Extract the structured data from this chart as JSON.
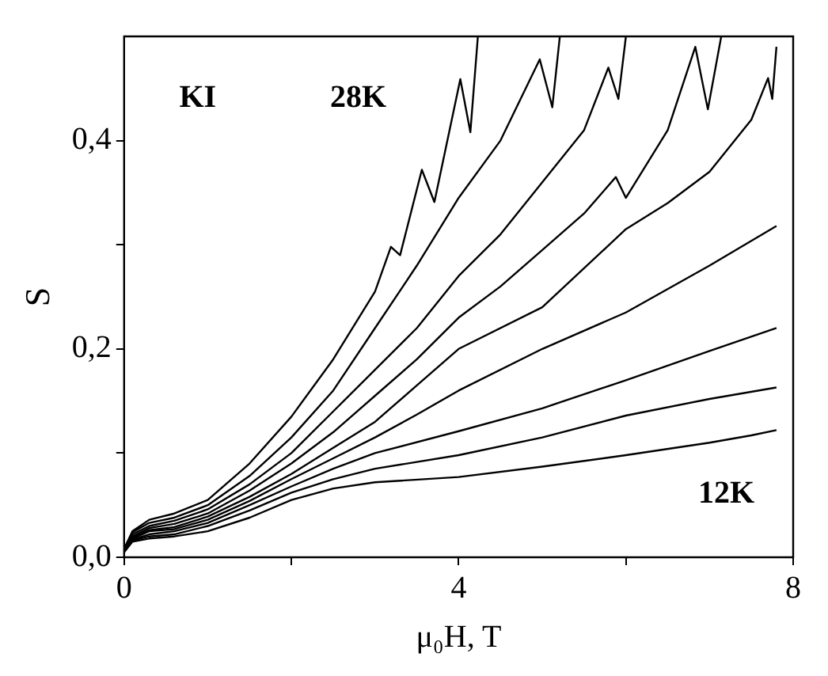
{
  "chart_data": {
    "type": "line",
    "xlabel": "μ₀H, T",
    "ylabel": "S",
    "xlim": [
      0,
      8
    ],
    "ylim": [
      0,
      0.5
    ],
    "xticks": [
      0,
      {
        "value": 2,
        "label": null
      },
      4,
      {
        "value": 6,
        "label": null
      },
      8
    ],
    "yticks": [
      {
        "value": 0,
        "label": "0,0"
      },
      {
        "value": 0.1,
        "label": null
      },
      {
        "value": 0.2,
        "label": "0,2"
      },
      {
        "value": 0.3,
        "label": null
      },
      {
        "value": 0.4,
        "label": "0,4"
      }
    ],
    "grid": false,
    "legend": false,
    "marker": "none",
    "line_style": "solid",
    "annotations": [
      "KI",
      "28K",
      "12K"
    ],
    "series": [
      {
        "color": "#000000",
        "x": [
          0,
          0.1,
          0.3,
          0.6,
          1,
          1.5,
          2,
          2.5,
          3,
          3.19,
          3.3,
          3.56,
          3.71,
          4.02,
          4.14,
          4.23
        ],
        "values": [
          0.008,
          0.025,
          0.036,
          0.042,
          0.055,
          0.09,
          0.135,
          0.19,
          0.255,
          0.298,
          0.29,
          0.372,
          0.341,
          0.459,
          0.408,
          0.5
        ]
      },
      {
        "color": "#000000",
        "x": [
          0,
          0.1,
          0.3,
          0.6,
          1,
          1.5,
          2,
          2.5,
          3,
          3.5,
          4,
          4.5,
          4.97,
          5.12,
          5.21
        ],
        "values": [
          0.008,
          0.024,
          0.033,
          0.038,
          0.05,
          0.078,
          0.115,
          0.16,
          0.22,
          0.28,
          0.345,
          0.4,
          0.478,
          0.432,
          0.5
        ]
      },
      {
        "color": "#000000",
        "x": [
          0,
          0.1,
          0.3,
          0.6,
          1,
          1.5,
          2,
          2.5,
          3,
          3.5,
          4,
          4.5,
          5,
          5.5,
          5.79,
          5.91,
          6.0
        ],
        "values": [
          0.007,
          0.022,
          0.03,
          0.035,
          0.046,
          0.07,
          0.1,
          0.14,
          0.18,
          0.22,
          0.27,
          0.31,
          0.36,
          0.41,
          0.47,
          0.44,
          0.5
        ]
      },
      {
        "color": "#000000",
        "x": [
          0,
          0.1,
          0.3,
          0.6,
          1,
          1.5,
          2,
          2.5,
          3,
          3.5,
          4,
          4.5,
          5,
          5.5,
          5.88,
          6,
          6.5,
          6.83,
          6.98,
          7.14
        ],
        "values": [
          0.006,
          0.02,
          0.028,
          0.032,
          0.042,
          0.064,
          0.09,
          0.12,
          0.155,
          0.19,
          0.23,
          0.26,
          0.295,
          0.33,
          0.365,
          0.345,
          0.41,
          0.49,
          0.43,
          0.5
        ]
      },
      {
        "color": "#000000",
        "x": [
          0,
          0.1,
          0.3,
          0.6,
          1,
          1.5,
          2,
          2.5,
          3,
          3.5,
          4,
          5,
          6,
          6.5,
          7,
          7.5,
          7.7,
          7.75,
          7.8
        ],
        "values": [
          0.006,
          0.019,
          0.026,
          0.029,
          0.039,
          0.058,
          0.08,
          0.105,
          0.13,
          0.165,
          0.2,
          0.24,
          0.315,
          0.34,
          0.37,
          0.42,
          0.46,
          0.44,
          0.49
        ]
      },
      {
        "color": "#000000",
        "x": [
          0,
          0.1,
          0.3,
          0.6,
          1,
          1.5,
          2,
          2.5,
          3,
          3.5,
          4,
          5,
          6,
          7,
          7.8
        ],
        "values": [
          0.006,
          0.018,
          0.025,
          0.027,
          0.036,
          0.054,
          0.075,
          0.095,
          0.115,
          0.137,
          0.16,
          0.2,
          0.235,
          0.28,
          0.318
        ]
      },
      {
        "color": "#000000",
        "x": [
          0,
          0.1,
          0.3,
          0.6,
          1,
          1.5,
          2,
          2.5,
          3,
          4,
          5,
          6,
          7,
          7.8
        ],
        "values": [
          0.005,
          0.017,
          0.022,
          0.025,
          0.033,
          0.05,
          0.068,
          0.085,
          0.1,
          0.121,
          0.143,
          0.17,
          0.198,
          0.22
        ]
      },
      {
        "color": "#000000",
        "x": [
          0,
          0.1,
          0.3,
          0.6,
          1,
          1.5,
          2,
          2.5,
          3,
          4,
          5,
          6,
          7,
          7.8
        ],
        "values": [
          0.005,
          0.016,
          0.02,
          0.022,
          0.03,
          0.045,
          0.062,
          0.075,
          0.085,
          0.098,
          0.115,
          0.136,
          0.152,
          0.163
        ]
      },
      {
        "color": "#000000",
        "x": [
          0,
          0.1,
          0.3,
          0.6,
          1,
          1.5,
          2,
          2.5,
          3,
          4,
          5,
          6,
          7,
          7.5,
          7.8
        ],
        "values": [
          0.005,
          0.015,
          0.018,
          0.02,
          0.025,
          0.038,
          0.055,
          0.066,
          0.072,
          0.077,
          0.087,
          0.098,
          0.11,
          0.117,
          0.122
        ]
      }
    ]
  }
}
